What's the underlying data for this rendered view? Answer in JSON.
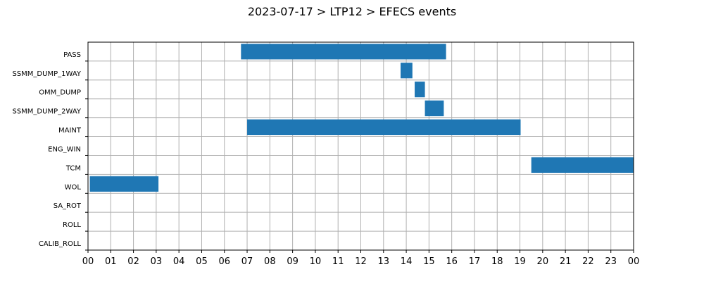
{
  "chart_data": {
    "type": "bar",
    "orientation": "horizontal-timeline",
    "title": "2023-07-17 > LTP12 > EFECS events",
    "xlabel": "",
    "ylabel": "",
    "grid": true,
    "x_unit": "hour",
    "xlim": [
      0,
      24
    ],
    "x_ticks": [
      "00",
      "01",
      "02",
      "03",
      "04",
      "05",
      "06",
      "07",
      "08",
      "09",
      "10",
      "11",
      "12",
      "13",
      "14",
      "15",
      "16",
      "17",
      "18",
      "19",
      "20",
      "21",
      "22",
      "23",
      "00"
    ],
    "categories": [
      "PASS",
      "SSMM_DUMP_1WAY",
      "OMM_DUMP",
      "SSMM_DUMP_2WAY",
      "MAINT",
      "ENG_WIN",
      "TCM",
      "WOL",
      "SA_ROT",
      "ROLL",
      "CALIB_ROLL"
    ],
    "events": [
      {
        "category": "PASS",
        "start": 6.73,
        "end": 15.75
      },
      {
        "category": "SSMM_DUMP_1WAY",
        "start": 13.75,
        "end": 14.27
      },
      {
        "category": "OMM_DUMP",
        "start": 14.37,
        "end": 14.82
      },
      {
        "category": "SSMM_DUMP_2WAY",
        "start": 14.82,
        "end": 15.65
      },
      {
        "category": "MAINT",
        "start": 7.0,
        "end": 19.03
      },
      {
        "category": "TCM",
        "start": 19.5,
        "end": 24.0
      },
      {
        "category": "WOL",
        "start": 0.08,
        "end": 3.1
      }
    ],
    "colors": {
      "bar": "#1f77b4",
      "grid": "#b0b0b0",
      "axis": "#000000"
    }
  }
}
